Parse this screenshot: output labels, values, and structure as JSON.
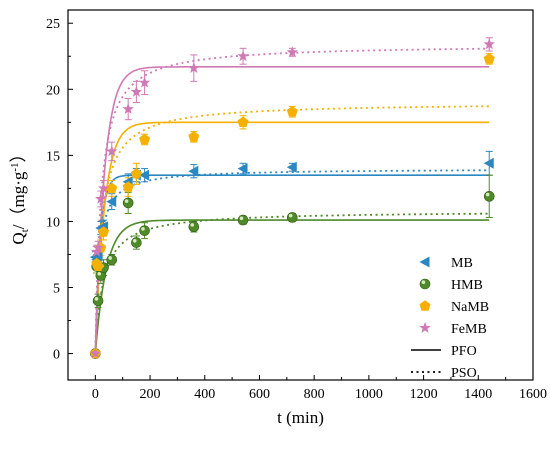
{
  "chart_data": {
    "type": "scatter",
    "xlabel": "t (min)",
    "ylabel_main": "Q",
    "ylabel_sub": "t",
    "ylabel_unit_prefix": "/（mg·g",
    "ylabel_unit_sup": "-1",
    "ylabel_unit_suffix": "）",
    "xlim": [
      -100,
      1600
    ],
    "ylim": [
      -2,
      26
    ],
    "xticks": [
      0,
      200,
      400,
      600,
      800,
      1000,
      1200,
      1400,
      1600
    ],
    "yticks": [
      0,
      5,
      10,
      15,
      20,
      25
    ],
    "series": [
      {
        "name": "MB",
        "marker": "triangle-left",
        "color": "#2a87c2",
        "x": [
          0,
          5,
          10,
          20,
          30,
          60,
          120,
          150,
          180,
          360,
          540,
          720,
          1440
        ],
        "y": [
          7.3,
          7.1,
          7.4,
          9.5,
          9.6,
          11.5,
          13.0,
          13.5,
          13.5,
          13.8,
          14.0,
          14.1,
          14.4
        ],
        "err": [
          0.4,
          0.4,
          0.4,
          0.5,
          0.5,
          0.6,
          0.6,
          0.5,
          0.5,
          0.5,
          0.4,
          0.3,
          0.9
        ],
        "pfo": {
          "qe": 13.5,
          "k": 0.055
        },
        "pso": {
          "qe": 14.0,
          "k": 0.0053
        }
      },
      {
        "name": "HMB",
        "marker": "sphere",
        "color": "#4f8a2a",
        "x": [
          0,
          5,
          10,
          20,
          30,
          60,
          120,
          150,
          180,
          360,
          540,
          720,
          1440
        ],
        "y": [
          0.0,
          6.6,
          4.0,
          5.9,
          6.5,
          7.1,
          11.4,
          8.4,
          9.3,
          9.6,
          10.1,
          10.3,
          11.9
        ],
        "err": [
          0.0,
          0.5,
          0.5,
          0.6,
          0.6,
          0.4,
          0.8,
          0.5,
          0.6,
          0.4,
          0.3,
          0.3,
          1.6
        ],
        "pfo": {
          "qe": 10.1,
          "k": 0.025
        },
        "pso": {
          "qe": 10.8,
          "k": 0.0032
        }
      },
      {
        "name": "NaMB",
        "marker": "pentagon",
        "color": "#f5b000",
        "x": [
          0,
          5,
          10,
          20,
          30,
          60,
          120,
          150,
          180,
          360,
          540,
          720,
          1440
        ],
        "y": [
          0.0,
          6.8,
          6.6,
          8.0,
          9.2,
          12.5,
          12.6,
          13.6,
          16.2,
          16.4,
          17.5,
          18.3,
          22.3
        ],
        "err": [
          0.0,
          0.5,
          0.5,
          0.6,
          0.6,
          0.6,
          0.7,
          0.8,
          0.4,
          0.4,
          0.5,
          0.4,
          0.4
        ],
        "pfo": {
          "qe": 17.5,
          "k": 0.03
        },
        "pso": {
          "qe": 19.0,
          "k": 0.0024
        }
      },
      {
        "name": "FeMB",
        "marker": "star",
        "color": "#d07ab5",
        "x": [
          0,
          5,
          10,
          20,
          30,
          60,
          120,
          150,
          180,
          360,
          540,
          720,
          1440
        ],
        "y": [
          0.0,
          7.7,
          8.0,
          11.7,
          12.5,
          15.3,
          18.5,
          19.8,
          20.5,
          21.6,
          22.5,
          22.8,
          23.4
        ],
        "err": [
          0.0,
          0.5,
          0.5,
          0.6,
          0.6,
          0.7,
          0.8,
          0.8,
          0.9,
          1.0,
          0.6,
          0.3,
          0.5
        ],
        "pfo": {
          "qe": 21.7,
          "k": 0.03
        },
        "pso": {
          "qe": 23.4,
          "k": 0.0021
        }
      }
    ],
    "legend_fits": [
      {
        "name": "PFO",
        "style": "solid"
      },
      {
        "name": "PSO",
        "style": "dotted"
      }
    ],
    "legend_position": "bottom-right"
  }
}
